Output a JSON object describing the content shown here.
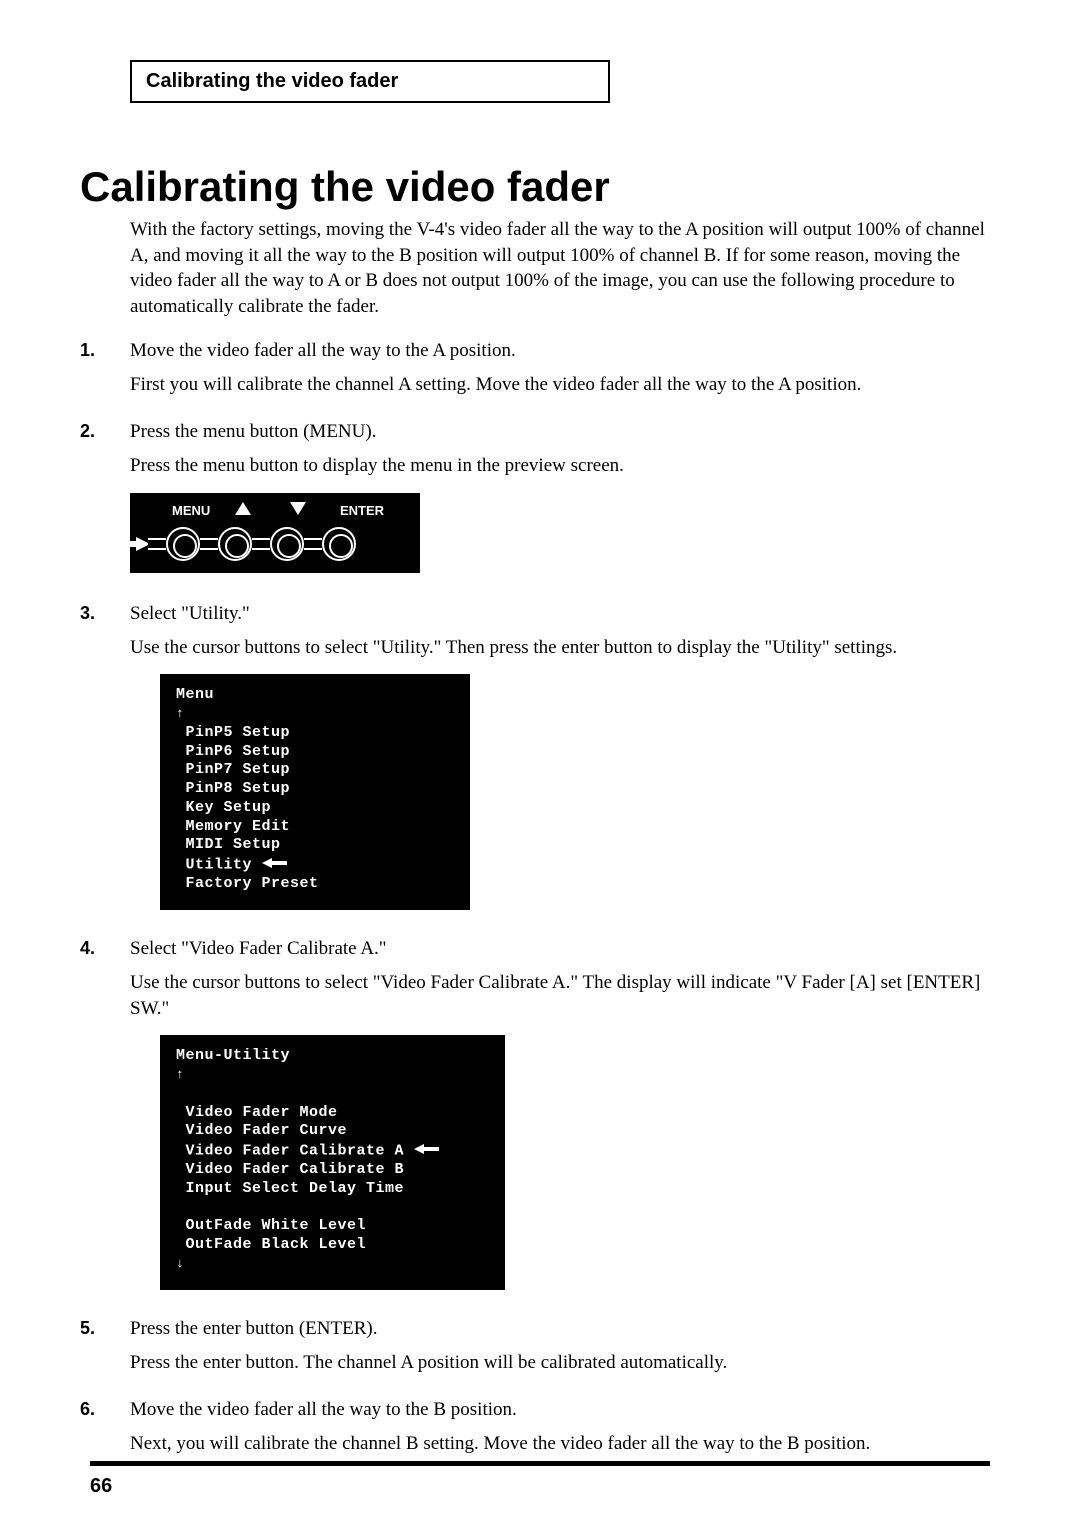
{
  "header": {
    "runningTitle": "Calibrating the video fader"
  },
  "title": "Calibrating the video fader",
  "intro": "With the factory settings, moving the V-4's video fader all the way to the A position will output 100% of channel A, and moving it all the way to the B position will output 100% of channel B. If for some reason, moving the video fader all the way to A or B does not output 100% of the image, you can use the following procedure to automatically calibrate the fader.",
  "steps": [
    {
      "num": "1.",
      "title": "Move the video fader all the way to the A position.",
      "desc": "First you will calibrate the channel A setting. Move the video fader all the way to the A position."
    },
    {
      "num": "2.",
      "title": "Press the menu button (MENU).",
      "desc": "Press the menu button to display the menu in the preview screen."
    },
    {
      "num": "3.",
      "title": "Select \"Utility.\"",
      "desc": "Use the cursor buttons to select \"Utility.\" Then press the enter button to display the \"Utility\" settings."
    },
    {
      "num": "4.",
      "title": "Select \"Video Fader Calibrate A.\"",
      "desc": "Use the cursor buttons to select \"Video Fader Calibrate A.\" The display will indicate \"V Fader [A] set [ENTER] SW.\""
    },
    {
      "num": "5.",
      "title": "Press the enter button (ENTER).",
      "desc": "Press the enter button. The channel A position will be calibrated automatically."
    },
    {
      "num": "6.",
      "title": "Move the video fader all the way to the B position.",
      "desc": "Next, you will calibrate the channel B setting. Move the video fader all the way to the B position."
    }
  ],
  "menuButtons": {
    "left": "MENU",
    "right": "ENTER"
  },
  "screen1": {
    "title": "Menu",
    "lines": [
      " PinP5 Setup",
      " PinP6 Setup",
      " PinP7 Setup",
      " PinP8 Setup",
      " Key Setup",
      " Memory Edit",
      " MIDI Setup",
      " Utility ",
      " Factory Preset"
    ],
    "selectedIndex": 7
  },
  "screen2": {
    "title": "Menu-Utility",
    "groups": [
      [
        "Video Fader Mode",
        "Video Fader Curve",
        "Video Fader Calibrate A ",
        "Video Fader Calibrate B",
        "Input Select Delay Time"
      ],
      [
        "OutFade White Level",
        "OutFade Black Level"
      ]
    ],
    "selectedGroup": 0,
    "selectedIndex": 2
  },
  "pageNumber": "66"
}
